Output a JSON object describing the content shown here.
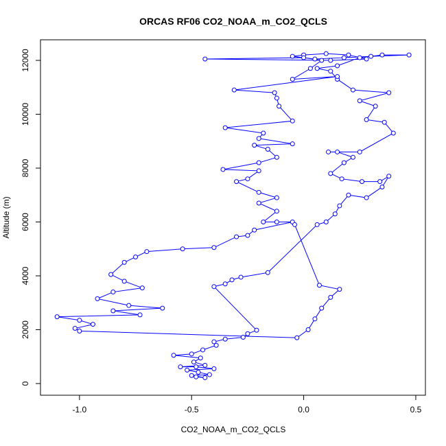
{
  "chart_data": {
    "type": "scatter",
    "title": "ORCAS RF06 CO2_NOAA_m_CO2_QCLS",
    "x_label": "CO2_NOAA_m_CO2_QCLS",
    "y_label": "Altitude (m)",
    "color": "#0000ff",
    "xlim": [
      -1.174,
      0.543
    ],
    "ylim": [
      -433,
      12764
    ],
    "xticks": [
      {
        "value": -1.0,
        "label": "-1.0"
      },
      {
        "value": -0.5,
        "label": "-0.5"
      },
      {
        "value": 0.0,
        "label": "0.0"
      },
      {
        "value": 0.5,
        "label": "0.5"
      }
    ],
    "yticks": [
      0,
      2000,
      4000,
      6000,
      8000,
      10000,
      12000
    ],
    "x": [
      -0.48,
      -0.44,
      -0.5,
      -0.42,
      -0.47,
      -0.52,
      -0.4,
      -0.48,
      -0.55,
      -0.44,
      -0.49,
      -0.46,
      -0.58,
      -0.5,
      -0.45,
      -0.39,
      -0.4,
      -0.35,
      -0.27,
      -0.25,
      -0.21,
      -0.4,
      -0.35,
      -0.32,
      -0.28,
      -0.16,
      0.06,
      0.1,
      0.14,
      0.16,
      0.2,
      0.28,
      0.35,
      0.38,
      0.34,
      0.26,
      0.17,
      0.12,
      0.18,
      0.22,
      0.15,
      0.11,
      0.25,
      0.4,
      0.36,
      0.28,
      0.32,
      0.25,
      0.38,
      0.22,
      0.15,
      0.12,
      0.06,
      0.15,
      0.25,
      0.35,
      0.47,
      0.3,
      0.18,
      0.05,
      -0.05,
      0.0,
      0.1,
      0.2,
      0.28,
      0.12,
      -0.44,
      0.0,
      0.08,
      0.03,
      -0.05,
      0.15,
      -0.31,
      -0.13,
      -0.12,
      -0.11,
      -0.05,
      -0.35,
      -0.18,
      -0.2,
      -0.05,
      -0.22,
      -0.16,
      -0.12,
      -0.2,
      -0.36,
      -0.2,
      -0.25,
      -0.3,
      -0.2,
      -0.12,
      -0.2,
      -0.12,
      -0.18,
      -0.12,
      -0.05,
      -0.22,
      -0.25,
      -0.3,
      -0.4,
      -0.54,
      -0.7,
      -0.75,
      -0.8,
      -0.86,
      -0.8,
      -0.72,
      -0.85,
      -0.92,
      -0.78,
      -0.63,
      -0.85,
      -0.73,
      -1.1,
      -1.0,
      -0.94,
      -1.02,
      -1.0,
      -0.03,
      0.02,
      0.05,
      0.08,
      0.12,
      0.16,
      0.07,
      -0.04
    ],
    "values": [
      250,
      220,
      300,
      330,
      420,
      500,
      550,
      620,
      620,
      680,
      800,
      950,
      1050,
      1100,
      1250,
      1420,
      1550,
      1650,
      1720,
      1850,
      1980,
      3600,
      3700,
      3850,
      3950,
      4120,
      5900,
      6000,
      6300,
      6600,
      7000,
      6900,
      7300,
      7700,
      7500,
      7500,
      7600,
      7800,
      8200,
      8400,
      8600,
      8600,
      8600,
      9300,
      9700,
      9800,
      10300,
      10500,
      10800,
      10900,
      11300,
      11600,
      11700,
      11800,
      12100,
      12200,
      12200,
      12150,
      12100,
      12050,
      12150,
      12200,
      12250,
      12200,
      12050,
      12000,
      12050,
      12100,
      12000,
      11700,
      11300,
      11400,
      10900,
      10800,
      10600,
      10300,
      9750,
      9500,
      9300,
      9100,
      8900,
      8850,
      8700,
      8400,
      8200,
      7950,
      7900,
      7600,
      7500,
      7100,
      6900,
      6700,
      6400,
      6000,
      6000,
      6000,
      5700,
      5500,
      5450,
      5050,
      5000,
      4900,
      4700,
      4500,
      4050,
      3800,
      3550,
      3400,
      3150,
      2900,
      2800,
      2700,
      2550,
      2480,
      2350,
      2200,
      2050,
      1950,
      1700,
      2000,
      2400,
      2800,
      3200,
      3500,
      3650,
      5900
    ]
  }
}
